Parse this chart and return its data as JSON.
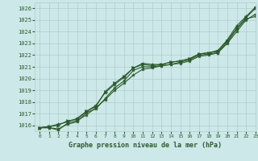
{
  "title": "Graphe pression niveau de la mer (hPa)",
  "background_color": "#cce8e8",
  "grid_color": "#b0cccc",
  "line_color": "#2d5a2d",
  "xlim": [
    -0.5,
    23
  ],
  "ylim": [
    1015.5,
    1026.5
  ],
  "yticks": [
    1016,
    1017,
    1018,
    1019,
    1020,
    1021,
    1022,
    1023,
    1024,
    1025,
    1026
  ],
  "xticks": [
    0,
    1,
    2,
    3,
    4,
    5,
    6,
    7,
    8,
    9,
    10,
    11,
    12,
    13,
    14,
    15,
    16,
    17,
    18,
    19,
    20,
    21,
    22,
    23
  ],
  "series": [
    [
      1015.8,
      1015.8,
      1015.7,
      1016.1,
      1016.3,
      1017.1,
      1017.4,
      1018.3,
      1019.2,
      1019.8,
      1020.7,
      1021.0,
      1021.0,
      1021.1,
      1021.2,
      1021.3,
      1021.5,
      1021.9,
      1022.0,
      1022.2,
      1023.1,
      1024.2,
      1025.1,
      1025.3
    ],
    [
      1015.8,
      1015.8,
      1015.6,
      1016.2,
      1016.4,
      1016.9,
      1017.5,
      1018.2,
      1019.0,
      1019.6,
      1020.3,
      1020.8,
      1020.9,
      1021.1,
      1021.2,
      1021.4,
      1021.6,
      1022.0,
      1022.1,
      1022.2,
      1023.0,
      1024.0,
      1025.0,
      1025.5
    ],
    [
      1015.8,
      1015.9,
      1016.1,
      1016.3,
      1016.6,
      1017.2,
      1017.7,
      1018.8,
      1019.5,
      1020.1,
      1020.9,
      1021.3,
      1021.2,
      1021.2,
      1021.4,
      1021.5,
      1021.7,
      1022.1,
      1022.2,
      1022.4,
      1023.3,
      1024.5,
      1025.3,
      1026.1
    ],
    [
      1015.8,
      1015.9,
      1016.0,
      1016.4,
      1016.5,
      1017.2,
      1017.6,
      1018.9,
      1019.6,
      1020.2,
      1020.9,
      1021.2,
      1021.1,
      1021.2,
      1021.4,
      1021.5,
      1021.7,
      1022.1,
      1022.2,
      1022.3,
      1023.2,
      1024.3,
      1025.2,
      1026.0
    ]
  ]
}
